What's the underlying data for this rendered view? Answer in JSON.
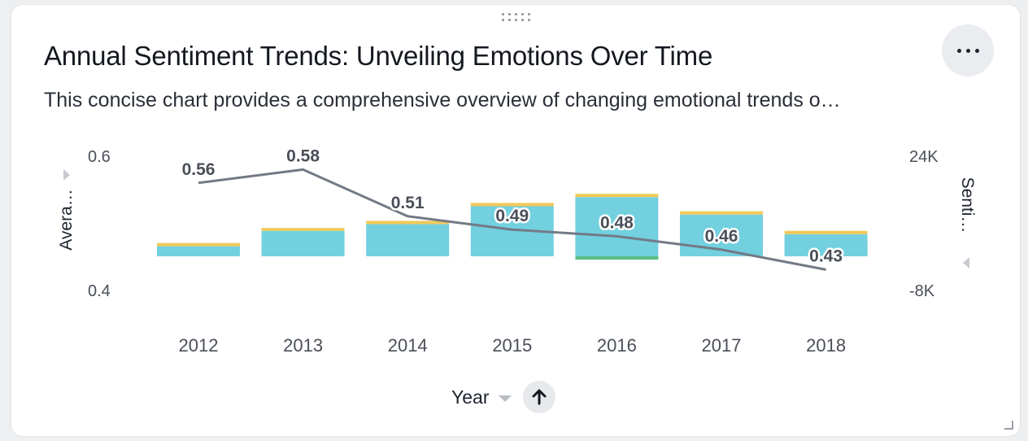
{
  "card": {
    "title": "Annual Sentiment Trends: Unveiling Emotions Over Time",
    "subtitle": "This concise chart provides a comprehensive overview of changing emotional trends o…",
    "menu_icon": "more-horizontal-icon"
  },
  "chart_data": {
    "type": "bar+line",
    "categories": [
      "2012",
      "2013",
      "2014",
      "2015",
      "2016",
      "2017",
      "2018"
    ],
    "xlabel": "Year",
    "y_left_label": "Avera…",
    "y_right_label": "Senti…",
    "y_left_ticks": [
      "0.6",
      "0.4"
    ],
    "y_left_range": [
      0.4,
      0.6
    ],
    "y_right_ticks": [
      "24K",
      "-8K"
    ],
    "y_right_range": [
      -8000,
      24000
    ],
    "stacked_bars": [
      {
        "color": "#72d0df",
        "values": [
          2400,
          6100,
          7700,
          12000,
          14200,
          10000,
          5300
        ]
      },
      {
        "color": "#f0c95a",
        "values": [
          800,
          700,
          800,
          800,
          800,
          800,
          800
        ]
      },
      {
        "color": "#5cbd85",
        "values": [
          0,
          0,
          0,
          0,
          -800,
          0,
          0
        ]
      }
    ],
    "line": {
      "color": "#737a86",
      "values": [
        0.56,
        0.58,
        0.51,
        0.49,
        0.48,
        0.46,
        0.43
      ],
      "labels": [
        "0.56",
        "0.58",
        "0.51",
        "0.49",
        "0.48",
        "0.46",
        "0.43"
      ]
    }
  },
  "footer": {
    "sort_icon": "arrow-up-icon",
    "dropdown_icon": "chevron-down-icon"
  }
}
